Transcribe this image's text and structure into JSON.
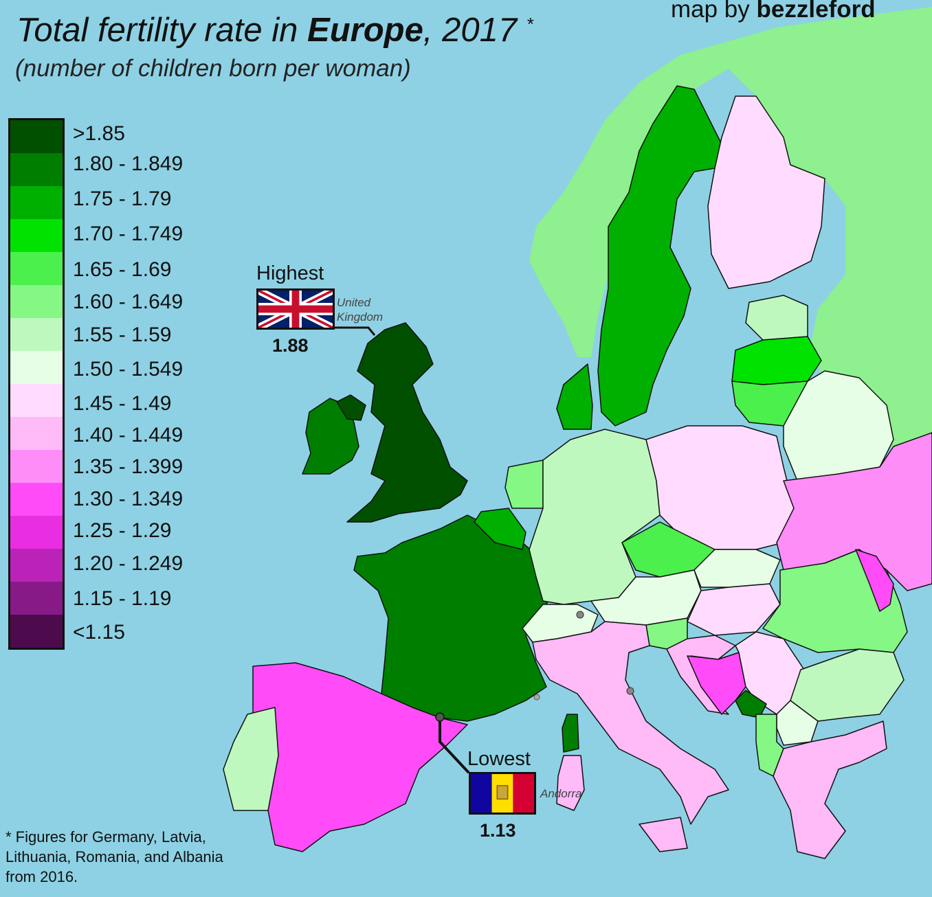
{
  "title": {
    "part1": "Total fertility rate in ",
    "part2": "Europe",
    "part3": ", 2017",
    "asterisk": "*"
  },
  "subtitle": "(number of children born per woman)",
  "credit": {
    "prefix": "map by ",
    "author": "bezzleford"
  },
  "legend": [
    {
      "label": ">1.85",
      "color": "#005000"
    },
    {
      "label": "1.80 - 1.849",
      "color": "#007e00"
    },
    {
      "label": "1.75 - 1.79",
      "color": "#00b000"
    },
    {
      "label": "1.70 - 1.749",
      "color": "#00e300"
    },
    {
      "label": "1.65 - 1.69",
      "color": "#4cf04c"
    },
    {
      "label": "1.60 - 1.649",
      "color": "#84f784"
    },
    {
      "label": "1.55 - 1.59",
      "color": "#bef8bf"
    },
    {
      "label": "1.50 - 1.549",
      "color": "#e6fde6"
    },
    {
      "label": "1.45 - 1.49",
      "color": "#ffdcff"
    },
    {
      "label": "1.40 - 1.449",
      "color": "#ffbaf8"
    },
    {
      "label": "1.35 - 1.399",
      "color": "#ff8df8"
    },
    {
      "label": "1.30 - 1.349",
      "color": "#ff4cf8"
    },
    {
      "label": "1.25 - 1.29",
      "color": "#e82ee0"
    },
    {
      "label": "1.20 - 1.249",
      "color": "#bb22b8"
    },
    {
      "label": "1.15 - 1.19",
      "color": "#881a88"
    },
    {
      "label": "<1.15",
      "color": "#4d0b4d"
    }
  ],
  "highest": {
    "title": "Highest",
    "country": "United Kingdom",
    "value": "1.88"
  },
  "lowest": {
    "title": "Lowest",
    "country": "Andorra",
    "value": "1.13"
  },
  "footnote": "* Figures for Germany, Latvia, Lithuania, Romania, and Albania from 2016.",
  "colors": {
    "sea": "#8ed1e4",
    "non_eu_land": "#8ef08e",
    "border": "#111111"
  }
}
